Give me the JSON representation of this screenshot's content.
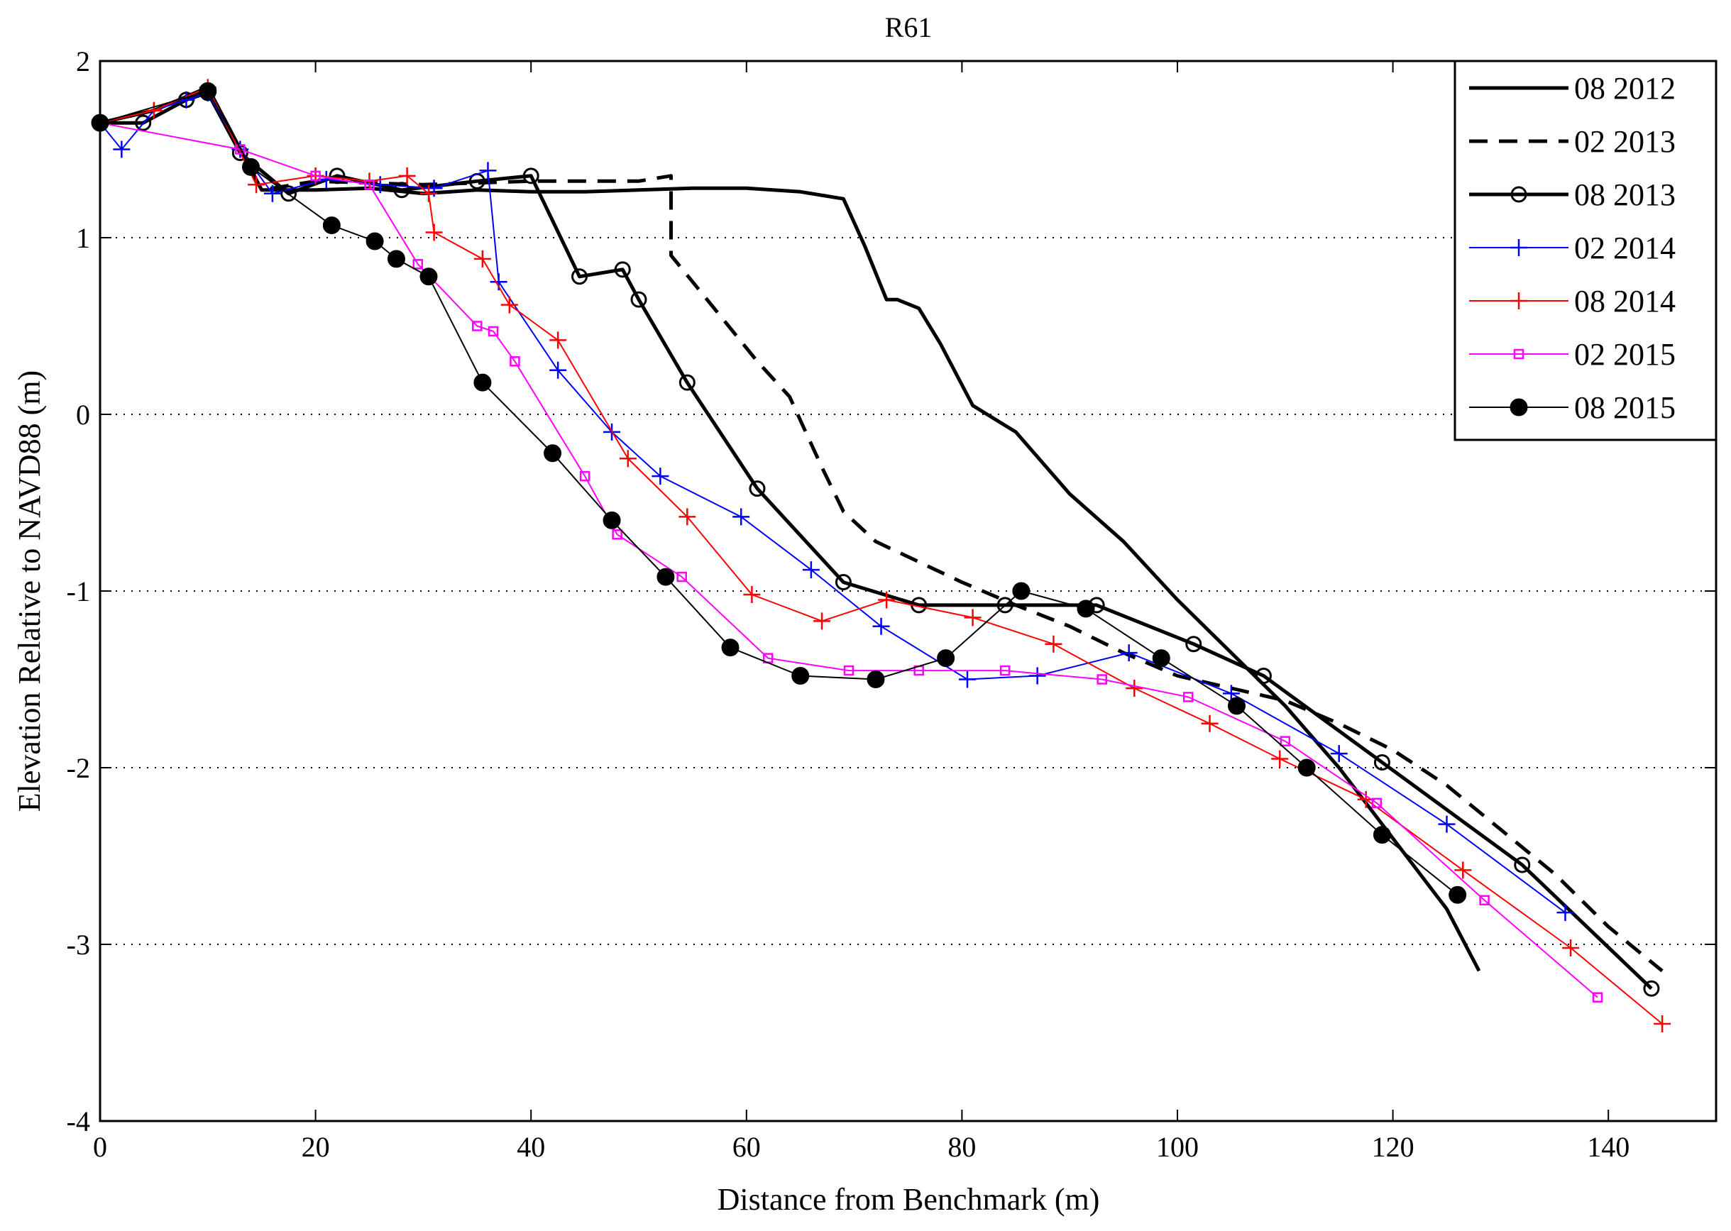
{
  "chart_data": {
    "type": "line",
    "title": "R61",
    "xlabel": "Distance from Benchmark (m)",
    "ylabel": "Elevation Relative to NAVD88 (m)",
    "xlim": [
      0,
      150
    ],
    "ylim": [
      -4,
      2
    ],
    "xticks": [
      0,
      20,
      40,
      60,
      80,
      100,
      120,
      140
    ],
    "yticks": [
      -4,
      -3,
      -2,
      -1,
      0,
      1,
      2
    ],
    "grid": "horizontal dotted",
    "legend_position": "top-right",
    "series": [
      {
        "name": "08 2012",
        "color": "#000000",
        "style": "solid-thick",
        "marker": "none",
        "x": [
          0,
          5,
          10,
          15,
          20,
          25,
          30,
          35,
          40,
          45,
          50,
          55,
          60,
          65,
          69,
          71,
          73,
          74,
          76,
          78,
          81,
          85,
          90,
          95,
          100,
          105,
          110,
          115,
          120,
          125,
          128
        ],
        "y": [
          1.65,
          1.72,
          1.85,
          1.27,
          1.27,
          1.28,
          1.25,
          1.27,
          1.26,
          1.26,
          1.27,
          1.28,
          1.28,
          1.26,
          1.22,
          0.95,
          0.65,
          0.65,
          0.6,
          0.4,
          0.05,
          -0.1,
          -0.45,
          -0.72,
          -1.05,
          -1.35,
          -1.65,
          -2.0,
          -2.4,
          -2.8,
          -3.15
        ]
      },
      {
        "name": "02 2013",
        "color": "#000000",
        "style": "dashed-thick",
        "marker": "none",
        "x": [
          0,
          5,
          10,
          15,
          20,
          30,
          40,
          50,
          53,
          53,
          57,
          61,
          64,
          67,
          69,
          72,
          80,
          85,
          90,
          95,
          100,
          105,
          110,
          115,
          120,
          125,
          130,
          135,
          140,
          145
        ],
        "y": [
          1.65,
          1.72,
          1.85,
          1.27,
          1.32,
          1.3,
          1.32,
          1.32,
          1.35,
          0.9,
          0.6,
          0.3,
          0.1,
          -0.3,
          -0.55,
          -0.72,
          -0.95,
          -1.08,
          -1.2,
          -1.35,
          -1.48,
          -1.55,
          -1.62,
          -1.75,
          -1.9,
          -2.1,
          -2.35,
          -2.6,
          -2.9,
          -3.15
        ]
      },
      {
        "name": "08 2013",
        "color": "#000000",
        "style": "solid-thick",
        "marker": "circle",
        "x": [
          0,
          4,
          8,
          10,
          13,
          17.5,
          22,
          28,
          35,
          40,
          44.5,
          48.5,
          50,
          54.5,
          61,
          69,
          76,
          84,
          92.5,
          101.5,
          108,
          119,
          132,
          144
        ],
        "y": [
          1.65,
          1.65,
          1.78,
          1.82,
          1.48,
          1.25,
          1.35,
          1.27,
          1.32,
          1.35,
          0.78,
          0.82,
          0.65,
          0.18,
          -0.42,
          -0.95,
          -1.08,
          -1.08,
          -1.08,
          -1.3,
          -1.48,
          -1.97,
          -2.55,
          -3.25
        ]
      },
      {
        "name": "02 2014",
        "color": "#0000ff",
        "style": "solid-thin",
        "marker": "plus",
        "x": [
          0,
          2,
          5,
          8,
          10,
          13,
          16,
          21,
          26,
          31,
          36,
          37,
          42.5,
          47.5,
          52,
          59.5,
          66,
          72.5,
          80.5,
          87,
          95.5,
          105,
          115,
          125,
          136
        ],
        "y": [
          1.65,
          1.5,
          1.72,
          1.78,
          1.82,
          1.5,
          1.25,
          1.33,
          1.3,
          1.28,
          1.38,
          0.75,
          0.25,
          -0.1,
          -0.35,
          -0.58,
          -0.88,
          -1.2,
          -1.5,
          -1.48,
          -1.35,
          -1.58,
          -1.92,
          -2.32,
          -2.82
        ]
      },
      {
        "name": "08 2014",
        "color": "#ff0000",
        "style": "solid-thin",
        "marker": "plus",
        "x": [
          0,
          5,
          10,
          14.5,
          20,
          25,
          28.5,
          30.5,
          31,
          35.5,
          38,
          42.5,
          49,
          54.5,
          60.5,
          67,
          73,
          81,
          88.5,
          96,
          103,
          109.5,
          117.5,
          126.5,
          136.5,
          145
        ],
        "y": [
          1.65,
          1.72,
          1.85,
          1.3,
          1.35,
          1.32,
          1.35,
          1.25,
          1.03,
          0.88,
          0.62,
          0.42,
          -0.25,
          -0.58,
          -1.02,
          -1.17,
          -1.05,
          -1.15,
          -1.3,
          -1.55,
          -1.75,
          -1.95,
          -2.18,
          -2.58,
          -3.02,
          -3.45
        ]
      },
      {
        "name": "02 2015",
        "color": "#ff00ff",
        "style": "solid-thin",
        "marker": "square",
        "x": [
          0,
          13,
          20,
          25,
          29.5,
          35,
          36.5,
          38.5,
          45,
          48,
          54,
          62,
          69.5,
          76,
          84,
          93,
          101,
          110,
          118.5,
          128.5,
          139
        ],
        "y": [
          1.65,
          1.5,
          1.35,
          1.3,
          0.85,
          0.5,
          0.47,
          0.3,
          -0.35,
          -0.68,
          -0.92,
          -1.38,
          -1.45,
          -1.45,
          -1.45,
          -1.5,
          -1.6,
          -1.85,
          -2.2,
          -2.75,
          -3.3
        ]
      },
      {
        "name": "08 2015",
        "color": "#000000",
        "style": "solid-thin",
        "marker": "filled-circle",
        "x": [
          0,
          10,
          14,
          21.5,
          25.5,
          27.5,
          30.5,
          35.5,
          42,
          47.5,
          52.5,
          58.5,
          65,
          72,
          78.5,
          85.5,
          91.5,
          98.5,
          105.5,
          112,
          119,
          126
        ],
        "y": [
          1.65,
          1.83,
          1.4,
          1.07,
          0.98,
          0.88,
          0.78,
          0.18,
          -0.22,
          -0.6,
          -0.92,
          -1.32,
          -1.48,
          -1.5,
          -1.38,
          -1.0,
          -1.1,
          -1.38,
          -1.65,
          -2.0,
          -2.38,
          -2.72
        ]
      }
    ]
  }
}
